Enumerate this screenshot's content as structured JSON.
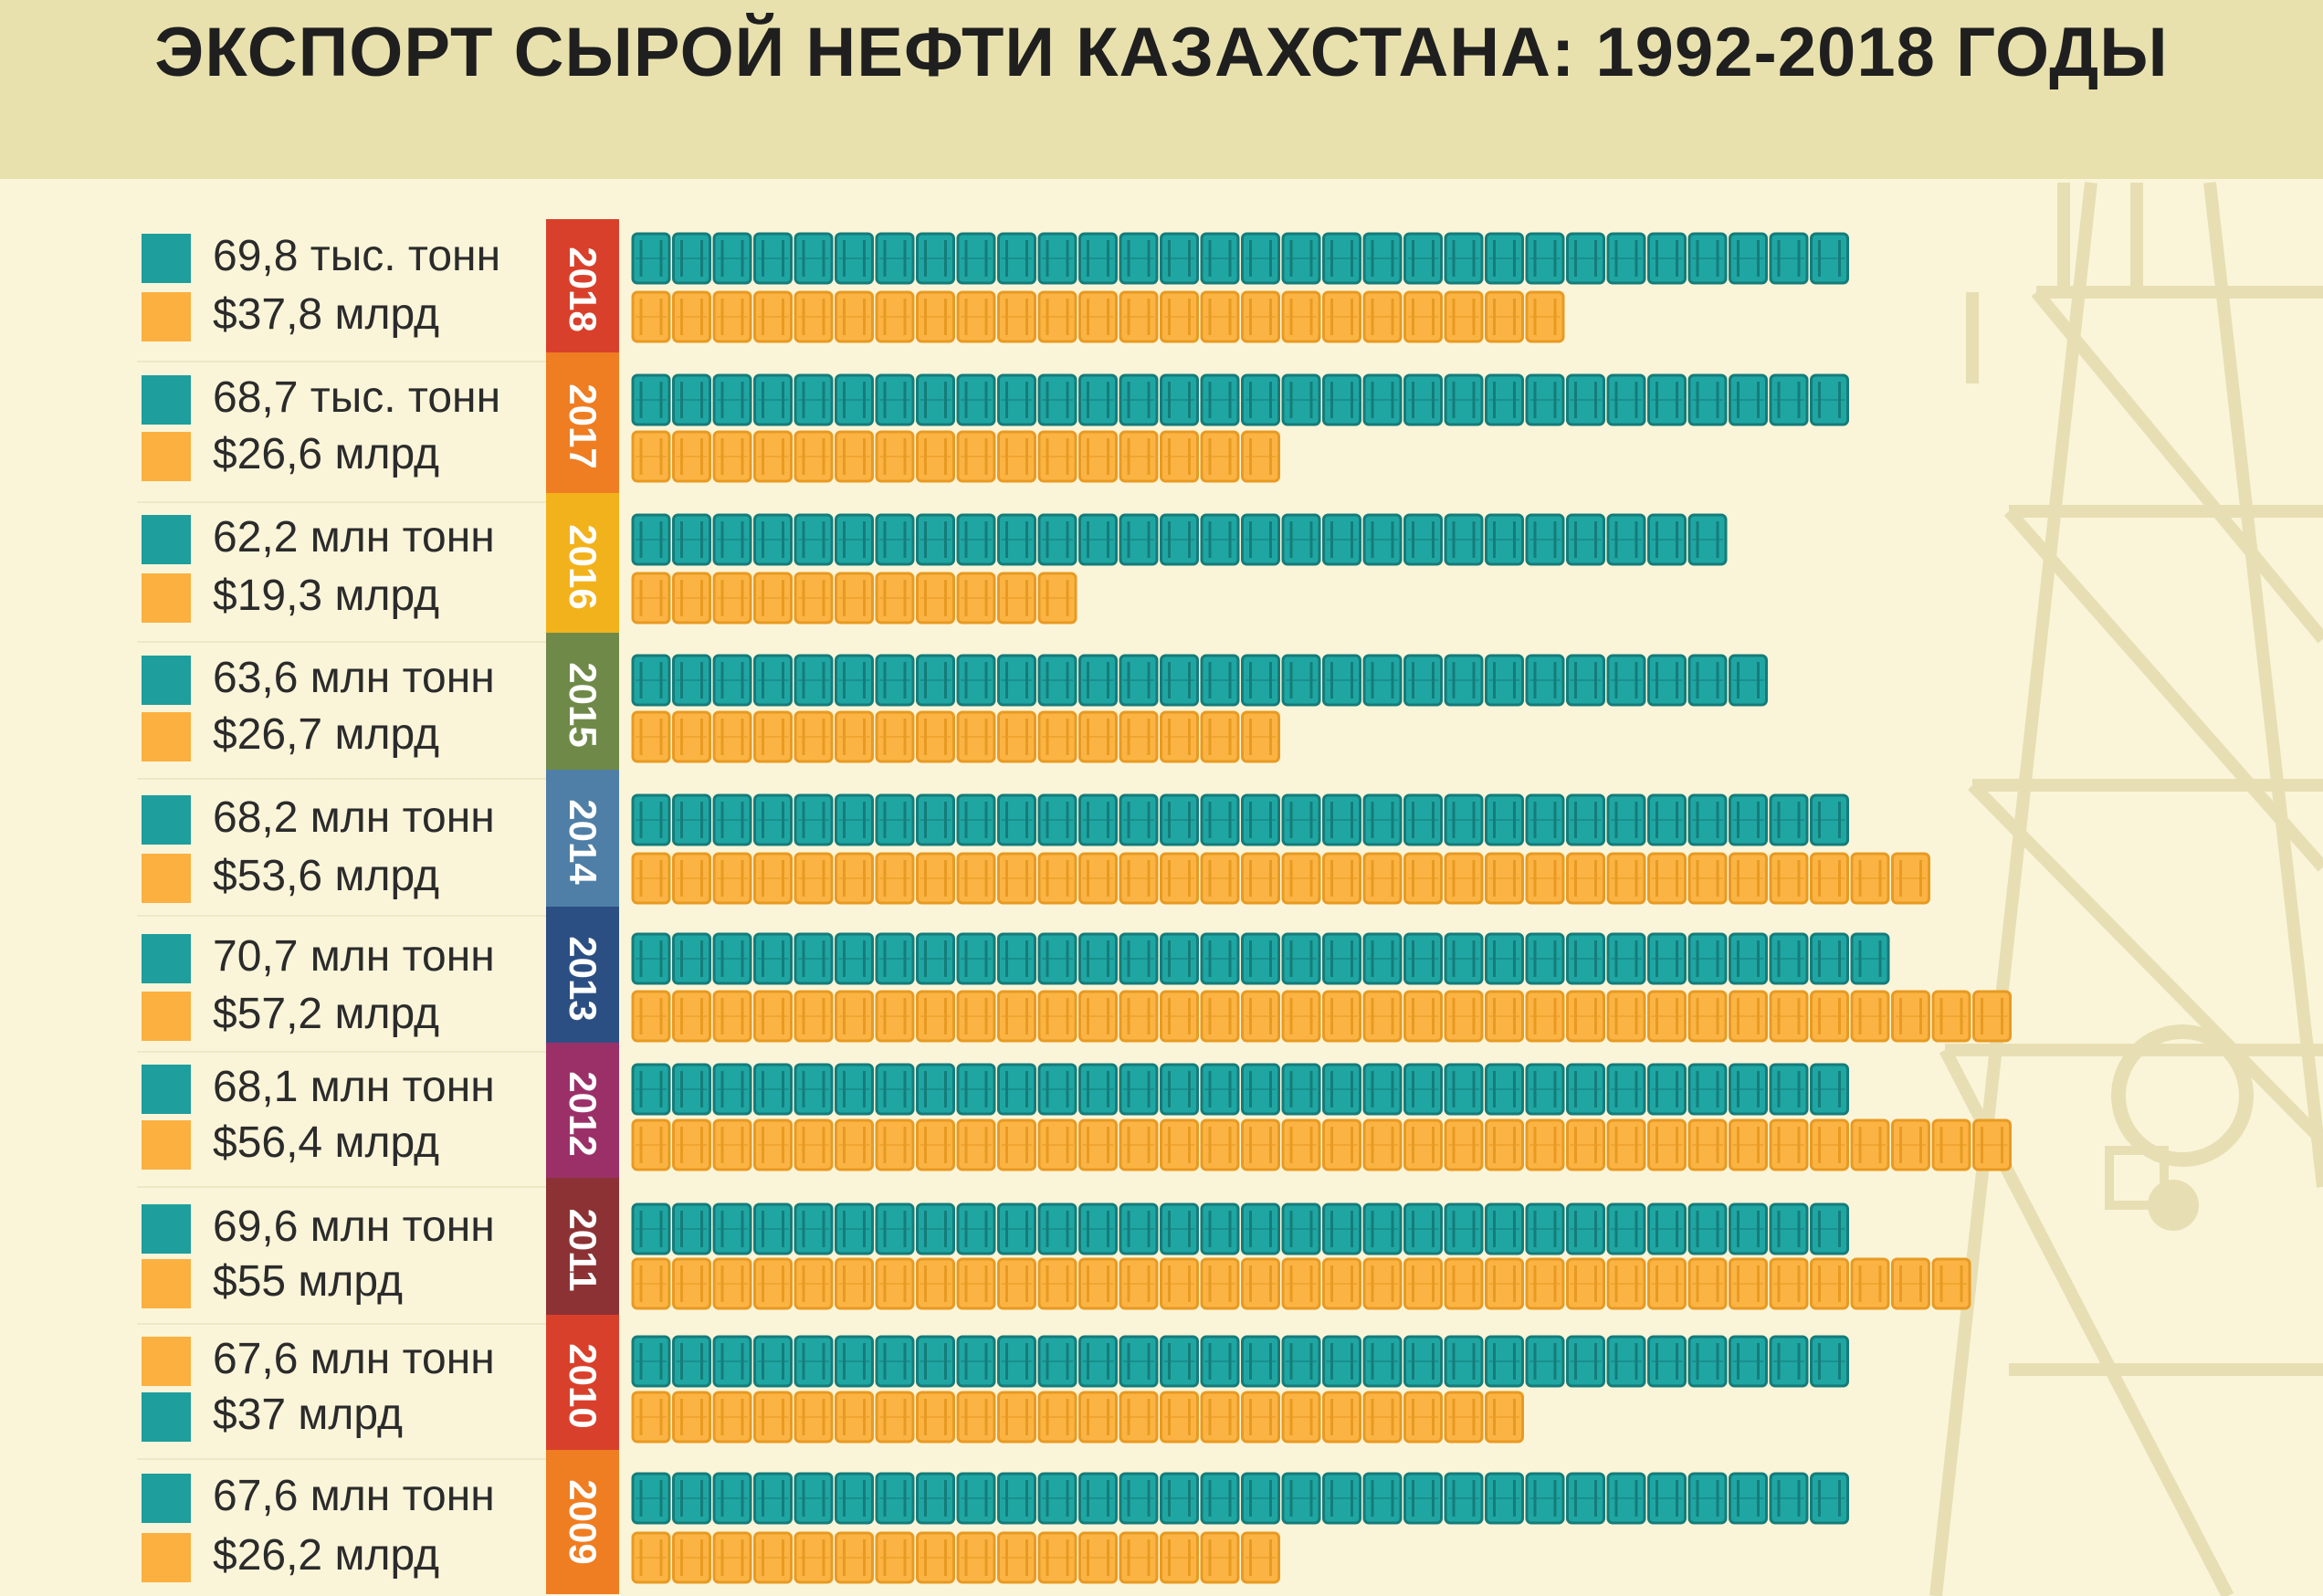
{
  "title": "ЭКСПОРТ СЫРОЙ НЕФТИ КАЗАХСТАНА: 1992-2018 ГОДЫ",
  "colors": {
    "teal": "#1e9e9c",
    "orange": "#fbb040",
    "background": "#faf5d9",
    "header": "#e8e1ad"
  },
  "chart_data": {
    "type": "bar",
    "mark": "pictogram-barrels",
    "categories": [
      "2018",
      "2017",
      "2016",
      "2015",
      "2014",
      "2013",
      "2012",
      "2011",
      "2010",
      "2009"
    ],
    "series": [
      {
        "name": "volume",
        "color": "teal",
        "values": [
          69.8,
          68.7,
          62.2,
          63.6,
          68.2,
          70.7,
          68.1,
          69.6,
          67.6,
          67.6
        ]
      },
      {
        "name": "value",
        "color": "orange",
        "values": [
          37.8,
          26.6,
          19.3,
          26.7,
          53.6,
          57.2,
          56.4,
          55,
          37,
          26.2
        ]
      }
    ],
    "barrel_counts": {
      "volume": [
        30,
        30,
        27,
        28,
        30,
        31,
        30,
        30,
        30,
        30
      ],
      "value": [
        23,
        16,
        11,
        16,
        32,
        34,
        34,
        33,
        22,
        16
      ]
    },
    "rows": [
      {
        "year": "2018",
        "year_color": "#d9402b",
        "volume_label": "69,8 тыс. тонн",
        "value_label": "$37,8 млрд",
        "volume_square": "teal",
        "value_square": "orange"
      },
      {
        "year": "2017",
        "year_color": "#ef7d22",
        "volume_label": "68,7 тыс. тонн",
        "value_label": "$26,6 млрд",
        "volume_square": "teal",
        "value_square": "orange"
      },
      {
        "year": "2016",
        "year_color": "#f2b21b",
        "volume_label": "62,2 млн тонн",
        "value_label": "$19,3 млрд",
        "volume_square": "teal",
        "value_square": "orange"
      },
      {
        "year": "2015",
        "year_color": "#6f8a48",
        "volume_label": "63,6 млн тонн",
        "value_label": "$26,7 млрд",
        "volume_square": "teal",
        "value_square": "orange"
      },
      {
        "year": "2014",
        "year_color": "#4f7fa6",
        "volume_label": "68,2 млн тонн",
        "value_label": "$53,6 млрд",
        "volume_square": "teal",
        "value_square": "orange"
      },
      {
        "year": "2013",
        "year_color": "#2b4f83",
        "volume_label": "70,7 млн тонн",
        "value_label": "$57,2 млрд",
        "volume_square": "teal",
        "value_square": "orange"
      },
      {
        "year": "2012",
        "year_color": "#9b3069",
        "volume_label": "68,1 млн тонн",
        "value_label": "$56,4 млрд",
        "volume_square": "teal",
        "value_square": "orange"
      },
      {
        "year": "2011",
        "year_color": "#8c3234",
        "volume_label": "69,6 млн тонн",
        "value_label": "$55 млрд",
        "volume_square": "teal",
        "value_square": "orange"
      },
      {
        "year": "2010",
        "year_color": "#d9402b",
        "volume_label": "67,6 млн тонн",
        "value_label": "$37 млрд",
        "volume_square": "orange",
        "value_square": "teal"
      },
      {
        "year": "2009",
        "year_color": "#ef7d22",
        "volume_label": "67,6 млн тонн",
        "value_label": "$26,2 млрд",
        "volume_square": "teal",
        "value_square": "orange"
      }
    ]
  }
}
